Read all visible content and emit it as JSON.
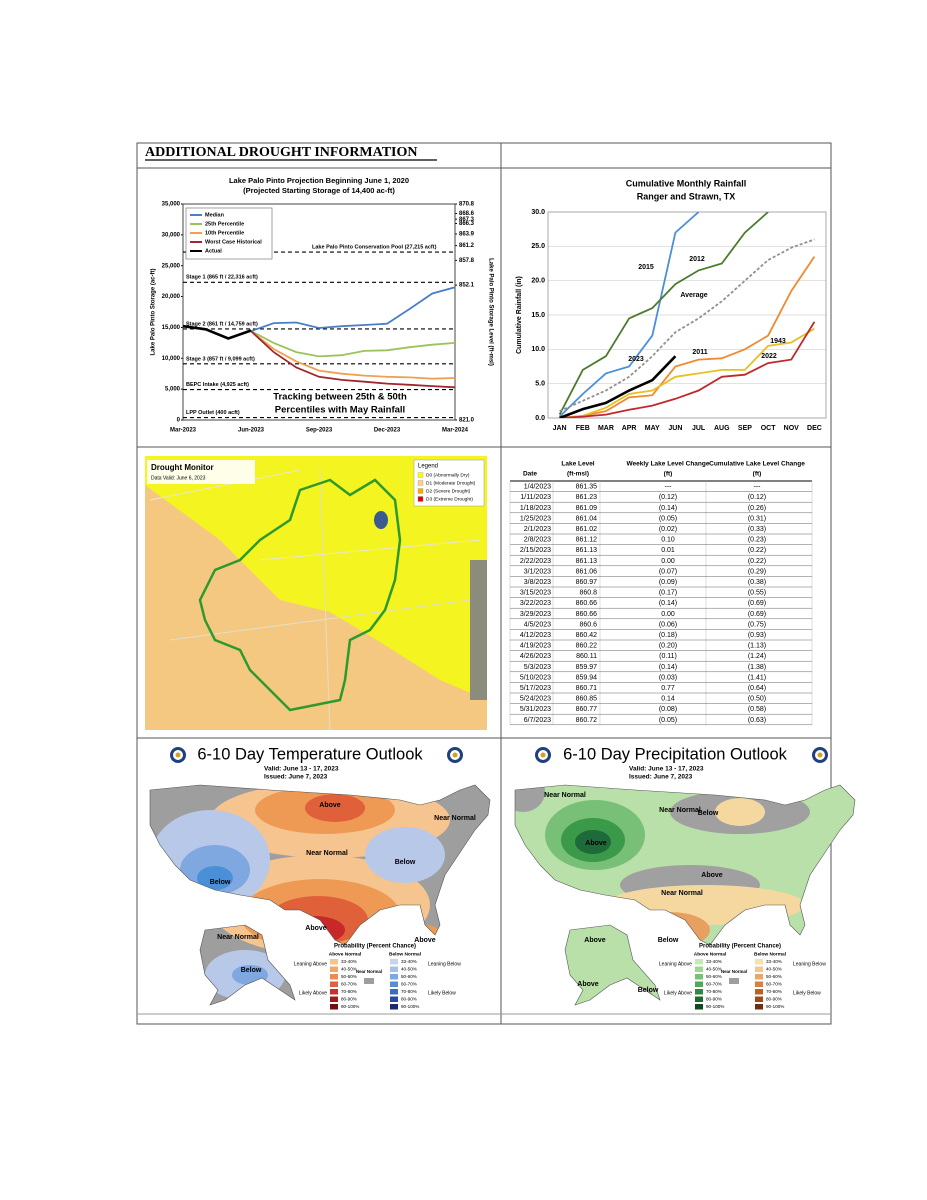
{
  "header": {
    "title": "ADDITIONAL DROUGHT INFORMATION"
  },
  "chart_data": [
    {
      "type": "line",
      "title": "Lake Palo Pinto Projection Beginning June 1, 2020",
      "subtitle": "(Projected Starting Storage of 14,400 ac-ft)",
      "y_label": "Lake Palo Pinto Storage (ac-ft)",
      "y2_label": "Lake Palo Pinto Storage Level (ft-msl)",
      "categories": [
        "Mar-2023",
        null,
        null,
        "Jun-2023",
        null,
        null,
        "Sep-2023",
        null,
        null,
        "Dec-2023",
        null,
        null,
        "Mar-2024"
      ],
      "series": [
        {
          "name": "Median",
          "color": "#4a7fc8",
          "values": [
            null,
            null,
            null,
            14400,
            15700,
            15800,
            14900,
            15200,
            15400,
            15600,
            18000,
            20500,
            21500
          ]
        },
        {
          "name": "25th Percentile",
          "color": "#9cc35a",
          "values": [
            null,
            null,
            null,
            14400,
            12500,
            11000,
            10300,
            10500,
            11200,
            11300,
            11800,
            12200,
            12500
          ]
        },
        {
          "name": "10th Percentile",
          "color": "#f0a050",
          "values": [
            null,
            null,
            null,
            14400,
            11500,
            9500,
            8000,
            7500,
            7200,
            7000,
            6900,
            6700,
            6800
          ]
        },
        {
          "name": "Worst Case Historical",
          "color": "#a0282d",
          "values": [
            null,
            null,
            null,
            14400,
            11000,
            8500,
            7000,
            6500,
            6200,
            5900,
            5700,
            5500,
            5300
          ]
        },
        {
          "name": "Actual",
          "color": "#000000",
          "values": [
            15200,
            14700,
            13200,
            14500,
            null,
            null,
            null,
            null,
            null,
            null,
            null,
            null,
            null
          ]
        }
      ],
      "ylim": [
        0,
        35000
      ],
      "yticks": [
        0,
        {
          "value": 5000,
          "label": "5,000"
        },
        {
          "value": 10000,
          "label": "10,000"
        },
        {
          "value": 15000,
          "label": "15,000"
        },
        {
          "value": 20000,
          "label": "20,000"
        },
        {
          "value": 25000,
          "label": "25,000"
        },
        {
          "value": 30000,
          "label": "30,000"
        },
        {
          "value": 35000,
          "label": "35,000"
        }
      ],
      "y2lim": [
        821,
        870.8
      ],
      "y2ticks": [
        {
          "value": 821,
          "label": "821.0"
        },
        852.1,
        857.8,
        861.2,
        863.9,
        866.3,
        867.3,
        868.6,
        870.8
      ],
      "reference_lines": [
        {
          "label": "Lake Palo Pinto Conservation Pool (27,215 acft)",
          "value": 27215
        },
        {
          "label": "Stage 1 (865 ft / 22,316 acft)",
          "value": 22316
        },
        {
          "label": "Stage 2 (861 ft / 14,759 acft)",
          "value": 14759
        },
        {
          "label": "Stage 3 (857 ft / 9,099 acft)",
          "value": 9099
        },
        {
          "label": "BEPC Intake (4,925 acft)",
          "value": 4925
        },
        {
          "label": "LPP Outlet (400 acft)",
          "value": 400
        }
      ],
      "annotation": [
        "Tracking between 25th & 50th",
        "Percentiles with May Rainfall"
      ],
      "legend": "upper left",
      "grid": false
    },
    {
      "type": "line",
      "title": "Cumulative Monthly Rainfall",
      "subtitle": "Ranger and Strawn, TX",
      "y_label": "Cumulative Rainfall (in)",
      "categories": [
        "JAN",
        "FEB",
        "MAR",
        "APR",
        "MAY",
        "JUN",
        "JUL",
        "AUG",
        "SEP",
        "OCT",
        "NOV",
        "DEC"
      ],
      "series": [
        {
          "name": "2015",
          "color": "#4a90d9",
          "values": [
            0.2,
            3.5,
            6.5,
            7.5,
            12,
            27,
            30,
            null,
            null,
            null,
            null,
            null
          ]
        },
        {
          "name": "2012",
          "color": "#4d7a2e",
          "values": [
            0.5,
            7,
            9,
            14.5,
            16,
            19.5,
            21.5,
            22.5,
            27,
            30,
            null,
            null
          ]
        },
        {
          "name": "Average",
          "color": "#909090",
          "style": "dashed",
          "values": [
            1,
            2.5,
            4,
            6,
            9,
            12.5,
            14.5,
            17,
            20,
            23,
            24.8,
            26
          ]
        },
        {
          "name": "2011",
          "color": "#f08a30",
          "values": [
            0,
            0.3,
            1,
            3,
            3.3,
            7.5,
            8.5,
            8.7,
            10,
            12,
            18.5,
            23.5
          ]
        },
        {
          "name": "1943",
          "color": "#e8c020",
          "values": [
            0,
            0.3,
            1.5,
            3.5,
            4,
            6,
            6.5,
            7,
            7,
            10.5,
            11,
            13
          ]
        },
        {
          "name": "2022",
          "color": "#c0282d",
          "values": [
            0,
            0.2,
            0.5,
            1.2,
            1.8,
            2.8,
            4,
            6,
            6.3,
            8,
            8.5,
            14
          ]
        },
        {
          "name": "2023",
          "color": "#000000",
          "values": [
            0,
            1.3,
            2.2,
            4,
            5.5,
            9,
            null,
            null,
            null,
            null,
            null,
            null
          ]
        }
      ],
      "ylim": [
        0,
        30
      ],
      "yticks": [
        {
          "value": 0,
          "label": "0.0"
        },
        {
          "value": 5,
          "label": "5.0"
        },
        {
          "value": 10,
          "label": "10.0"
        },
        {
          "value": 15,
          "label": "15.0"
        },
        {
          "value": 20,
          "label": "20.0"
        },
        {
          "value": 25,
          "label": "25.0"
        },
        {
          "value": 30,
          "label": "30.0"
        }
      ],
      "legend": "inline",
      "grid": true
    }
  ],
  "drought_monitor": {
    "title": "Drought Monitor",
    "subtitle": "Data Valid: June 6, 2023",
    "legend_title": "Legend",
    "legend": [
      {
        "label": "D0 (Abnormally Dry)",
        "color": "#ffff00"
      },
      {
        "label": "D1 (Moderate Drought)",
        "color": "#fcd37f"
      },
      {
        "label": "D2 (Severe Drought)",
        "color": "#ffaa00"
      },
      {
        "label": "D3 (Extreme Drought)",
        "color": "#e60000"
      }
    ]
  },
  "table": {
    "columns": [
      [
        "Date"
      ],
      [
        "Lake Level",
        "(ft-msl)"
      ],
      [
        "Weekly Lake Level Change",
        "(ft)"
      ],
      [
        "Cumulative Lake Level Change",
        "(ft)"
      ]
    ],
    "rows": [
      [
        "1/4/2023",
        "861.35",
        "---",
        "---"
      ],
      [
        "1/11/2023",
        "861.23",
        "(0.12)",
        "(0.12)"
      ],
      [
        "1/18/2023",
        "861.09",
        "(0.14)",
        "(0.26)"
      ],
      [
        "1/25/2023",
        "861.04",
        "(0.05)",
        "(0.31)"
      ],
      [
        "2/1/2023",
        "861.02",
        "(0.02)",
        "(0.33)"
      ],
      [
        "2/8/2023",
        "861.12",
        "0.10",
        "(0.23)"
      ],
      [
        "2/15/2023",
        "861.13",
        "0.01",
        "(0.22)"
      ],
      [
        "2/22/2023",
        "861.13",
        "0.00",
        "(0.22)"
      ],
      [
        "3/1/2023",
        "861.06",
        "(0.07)",
        "(0.29)"
      ],
      [
        "3/8/2023",
        "860.97",
        "(0.09)",
        "(0.38)"
      ],
      [
        "3/15/2023",
        "860.8",
        "(0.17)",
        "(0.55)"
      ],
      [
        "3/22/2023",
        "860.66",
        "(0.14)",
        "(0.69)"
      ],
      [
        "3/29/2023",
        "860.66",
        "0.00",
        "(0.69)"
      ],
      [
        "4/5/2023",
        "860.6",
        "(0.06)",
        "(0.75)"
      ],
      [
        "4/12/2023",
        "860.42",
        "(0.18)",
        "(0.93)"
      ],
      [
        "4/19/2023",
        "860.22",
        "(0.20)",
        "(1.13)"
      ],
      [
        "4/26/2023",
        "860.11",
        "(0.11)",
        "(1.24)"
      ],
      [
        "5/3/2023",
        "859.97",
        "(0.14)",
        "(1.38)"
      ],
      [
        "5/10/2023",
        "859.94",
        "(0.03)",
        "(1.41)"
      ],
      [
        "5/17/2023",
        "860.71",
        "0.77",
        "(0.64)"
      ],
      [
        "5/24/2023",
        "860.85",
        "0.14",
        "(0.50)"
      ],
      [
        "5/31/2023",
        "860.77",
        "(0.08)",
        "(0.58)"
      ],
      [
        "6/7/2023",
        "860.72",
        "(0.05)",
        "(0.63)"
      ]
    ]
  },
  "outlooks": [
    {
      "title": "6-10 Day Temperature Outlook",
      "valid": "Valid:  June 13 - 17, 2023",
      "issued": "Issued:  June 7, 2023",
      "regions": [
        "Above",
        "Near Normal",
        "Below",
        "Near Normal",
        "Below",
        "Above",
        "Above",
        "Near Normal",
        "Below"
      ],
      "legend": {
        "title": "Probability (Percent Chance)",
        "above_title": "Above Normal",
        "below_title": "Below Normal",
        "near": "Near Normal",
        "leaning_above": "Leaning Above",
        "likely_above": "Likely Above",
        "leaning_below": "Leaning Below",
        "likely_below": "Likely Below",
        "levels": [
          "33-40%",
          "40-50%",
          "50-60%",
          "60-70%",
          "70-80%",
          "80-90%",
          "90-100%"
        ],
        "above_colors": [
          "#f6c48e",
          "#f2a868",
          "#ee8c50",
          "#e06040",
          "#c83030",
          "#a01820",
          "#701010"
        ],
        "below_colors": [
          "#c8d4ec",
          "#a8c0e6",
          "#80a8e0",
          "#5a8cd4",
          "#3a6cc0",
          "#2a4aa0",
          "#1a2a70"
        ]
      }
    },
    {
      "title": "6-10 Day Precipitation Outlook",
      "valid": "Valid:  June 13 - 17, 2023",
      "issued": "Issued:  June 7, 2023",
      "regions": [
        "Near Normal",
        "Near Normal",
        "Below",
        "Above",
        "Above",
        "Near Normal",
        "Below",
        "Above",
        "Above",
        "Below"
      ],
      "legend": {
        "title": "Probability (Percent Chance)",
        "above_title": "Above Normal",
        "below_title": "Below Normal",
        "near": "Near Normal",
        "leaning_above": "Leaning Above",
        "likely_above": "Likely Above",
        "leaning_below": "Leaning Below",
        "likely_below": "Likely Below",
        "levels": [
          "33-40%",
          "40-50%",
          "50-60%",
          "60-70%",
          "70-80%",
          "80-90%",
          "90-100%"
        ],
        "above_colors": [
          "#c8e8b8",
          "#a0d890",
          "#78c078",
          "#50a858",
          "#2e8a42",
          "#1e6a30",
          "#104a20"
        ],
        "below_colors": [
          "#f5e0b0",
          "#f0c890",
          "#e8a868",
          "#d88040",
          "#c06020",
          "#a04818",
          "#703010"
        ]
      }
    }
  ]
}
